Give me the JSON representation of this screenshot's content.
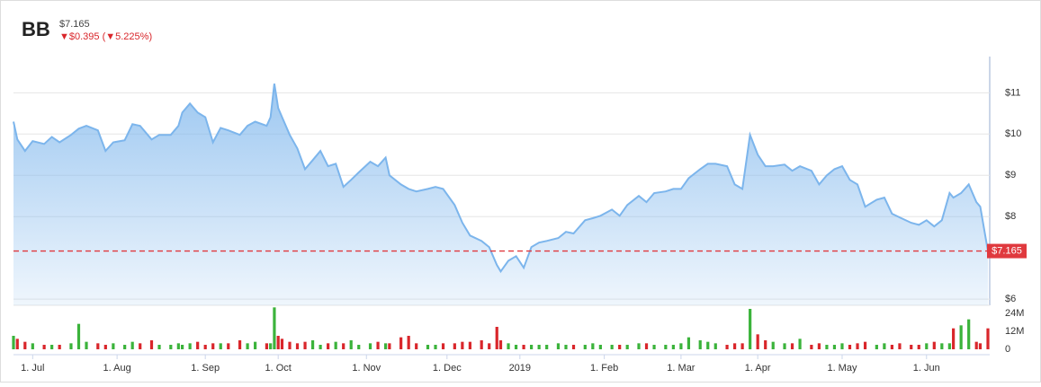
{
  "chart_data": [
    {
      "type": "area",
      "title": "BB",
      "subtitle": "$7.165",
      "annotation": "▼$0.395 (▼5.225%)",
      "color": "#7cb5ec",
      "last": {
        "value": 7.165,
        "label": "$7.165"
      },
      "last_color": "#e0393e",
      "x": [
        0,
        1,
        3,
        5,
        8,
        10,
        12,
        15,
        17,
        19,
        22,
        24,
        26,
        29,
        31,
        33,
        36,
        38,
        41,
        43,
        44,
        46,
        48,
        50,
        52,
        54,
        56,
        59,
        61,
        63,
        66,
        67,
        68,
        69,
        70,
        72,
        74,
        76,
        78,
        80,
        82,
        84,
        86,
        88,
        90,
        93,
        95,
        97,
        98,
        101,
        103,
        105,
        108,
        110,
        112,
        115,
        117,
        119,
        122,
        124,
        126,
        127,
        129,
        131,
        133,
        135,
        137,
        139,
        142,
        144,
        146,
        149,
        151,
        153,
        156,
        158,
        160,
        163,
        165,
        167,
        170,
        172,
        174,
        176,
        179,
        181,
        183,
        186,
        188,
        190,
        192,
        194,
        196,
        198,
        201,
        203,
        205,
        208,
        210,
        212,
        214,
        216,
        218,
        220,
        222,
        225,
        227,
        229,
        231,
        234,
        236,
        238,
        240,
        242,
        244,
        245,
        247,
        249,
        251,
        252,
        254
      ],
      "values": [
        10.3,
        9.87,
        9.59,
        9.83,
        9.76,
        9.93,
        9.8,
        9.98,
        10.13,
        10.2,
        10.09,
        9.59,
        9.8,
        9.85,
        10.24,
        10.2,
        9.87,
        9.98,
        9.98,
        10.2,
        10.52,
        10.74,
        10.52,
        10.41,
        9.8,
        10.15,
        10.09,
        9.98,
        10.2,
        10.3,
        10.2,
        10.41,
        11.22,
        10.63,
        10.41,
        9.98,
        9.65,
        9.15,
        9.37,
        9.59,
        9.22,
        9.28,
        8.72,
        8.89,
        9.07,
        9.33,
        9.22,
        9.43,
        9.0,
        8.78,
        8.67,
        8.61,
        8.67,
        8.72,
        8.67,
        8.28,
        7.85,
        7.54,
        7.41,
        7.26,
        6.83,
        6.67,
        6.93,
        7.04,
        6.76,
        7.26,
        7.37,
        7.41,
        7.48,
        7.63,
        7.59,
        7.91,
        7.96,
        8.02,
        8.17,
        8.02,
        8.28,
        8.5,
        8.35,
        8.57,
        8.61,
        8.67,
        8.67,
        8.93,
        9.15,
        9.28,
        9.28,
        9.22,
        8.78,
        8.67,
        9.98,
        9.5,
        9.22,
        9.22,
        9.26,
        9.11,
        9.22,
        9.11,
        8.78,
        9.0,
        9.15,
        9.22,
        8.89,
        8.78,
        8.24,
        8.41,
        8.46,
        8.07,
        7.98,
        7.85,
        7.8,
        7.91,
        7.76,
        7.91,
        8.57,
        8.46,
        8.57,
        8.78,
        8.35,
        8.24,
        7.165
      ],
      "xlim": [
        0,
        254
      ],
      "xticks": [
        {
          "value": 5,
          "label": "1. Jul"
        },
        {
          "value": 27,
          "label": "1. Aug"
        },
        {
          "value": 50,
          "label": "1. Sep"
        },
        {
          "value": 69,
          "label": "1. Oct"
        },
        {
          "value": 92,
          "label": "1. Nov"
        },
        {
          "value": 113,
          "label": "1. Dec"
        },
        {
          "value": 132,
          "label": "2019"
        },
        {
          "value": 154,
          "label": "1. Feb"
        },
        {
          "value": 174,
          "label": "1. Mar"
        },
        {
          "value": 194,
          "label": "1. Apr"
        },
        {
          "value": 216,
          "label": "1. May"
        },
        {
          "value": 238,
          "label": "1. Jun"
        }
      ],
      "ylim": [
        5.85,
        11.9
      ],
      "yticks": [
        {
          "value": 6,
          "label": "$6"
        },
        {
          "value": 8,
          "label": "$8"
        },
        {
          "value": 9,
          "label": "$9"
        },
        {
          "value": 10,
          "label": "$10"
        },
        {
          "value": 11,
          "label": "$11"
        }
      ],
      "grid": true
    },
    {
      "type": "bar",
      "up_color": "#3bb33b",
      "down_color": "#d9262b",
      "x": [
        0,
        1,
        3,
        5,
        8,
        10,
        12,
        15,
        17,
        19,
        22,
        24,
        26,
        29,
        31,
        33,
        36,
        38,
        41,
        43,
        44,
        46,
        48,
        50,
        52,
        54,
        56,
        59,
        61,
        63,
        66,
        67,
        68,
        69,
        70,
        72,
        74,
        76,
        78,
        80,
        82,
        84,
        86,
        88,
        90,
        93,
        95,
        97,
        98,
        101,
        103,
        105,
        108,
        110,
        112,
        115,
        117,
        119,
        122,
        124,
        126,
        127,
        129,
        131,
        133,
        135,
        137,
        139,
        142,
        144,
        146,
        149,
        151,
        153,
        156,
        158,
        160,
        163,
        165,
        167,
        170,
        172,
        174,
        176,
        179,
        181,
        183,
        186,
        188,
        190,
        192,
        194,
        196,
        198,
        201,
        203,
        205,
        208,
        210,
        212,
        214,
        216,
        218,
        220,
        222,
        225,
        227,
        229,
        231,
        234,
        236,
        238,
        240,
        242,
        244,
        245,
        247,
        249,
        251,
        252,
        254
      ],
      "values": [
        9,
        7,
        5,
        4,
        3,
        3,
        3,
        4,
        17,
        5,
        4,
        3,
        4,
        3,
        5,
        4,
        6,
        3,
        3,
        4,
        3,
        4,
        5,
        3,
        4,
        4,
        4,
        6,
        4,
        5,
        4,
        4,
        28,
        9,
        7,
        5,
        4,
        5,
        6,
        3,
        4,
        5,
        4,
        6,
        3,
        4,
        5,
        4,
        4,
        8,
        9,
        4,
        3,
        3,
        4,
        4,
        5,
        5,
        6,
        4,
        15,
        6,
        4,
        3,
        3,
        3,
        3,
        3,
        4,
        3,
        3,
        3,
        4,
        3,
        3,
        3,
        3,
        4,
        4,
        3,
        3,
        3,
        4,
        8,
        6,
        5,
        4,
        3,
        4,
        4,
        27,
        10,
        6,
        5,
        4,
        4,
        7,
        3,
        4,
        3,
        3,
        4,
        3,
        4,
        5,
        3,
        4,
        3,
        4,
        3,
        3,
        4,
        5,
        4,
        4,
        14,
        16,
        20,
        5,
        4,
        14
      ],
      "ylim": [
        0,
        27
      ],
      "yticks": [
        0,
        {
          "value": 12,
          "label": "12M"
        },
        {
          "value": 24,
          "label": "24M"
        }
      ]
    }
  ]
}
